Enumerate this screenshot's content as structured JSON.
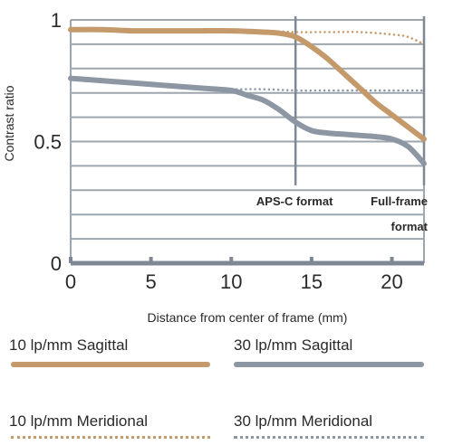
{
  "chart_data": {
    "type": "line",
    "title": "",
    "xlabel": "Distance from center of frame (mm)",
    "ylabel": "Contrast ratio",
    "xlim": [
      0,
      22
    ],
    "ylim": [
      0,
      1
    ],
    "xticks": [
      "0",
      "5",
      "10",
      "15",
      "20"
    ],
    "yticks": [
      "0",
      "0.5",
      "1"
    ],
    "grid": true,
    "annotations": [
      {
        "x": 14,
        "label": "APS-C format"
      },
      {
        "x": 22,
        "label": "Full-frame",
        "label2": "format"
      }
    ],
    "series": [
      {
        "name": "10 lp/mm Sagittal",
        "style": "solid",
        "color": "#c59a6b",
        "x": [
          0,
          2,
          4,
          6,
          8,
          10,
          12,
          13,
          14,
          15,
          16,
          17,
          18,
          19,
          20,
          21,
          22
        ],
        "y": [
          0.96,
          0.96,
          0.955,
          0.955,
          0.955,
          0.955,
          0.95,
          0.945,
          0.93,
          0.89,
          0.84,
          0.78,
          0.72,
          0.66,
          0.61,
          0.56,
          0.51
        ]
      },
      {
        "name": "30 lp/mm Sagittal",
        "style": "solid",
        "color": "#8c97a3",
        "x": [
          0,
          2,
          4,
          6,
          8,
          10,
          11,
          12,
          13,
          14,
          15,
          16,
          17,
          18,
          19,
          20,
          21,
          22
        ],
        "y": [
          0.76,
          0.75,
          0.74,
          0.73,
          0.72,
          0.71,
          0.69,
          0.67,
          0.63,
          0.58,
          0.545,
          0.535,
          0.53,
          0.525,
          0.52,
          0.51,
          0.48,
          0.41
        ]
      },
      {
        "name": "10 lp/mm Meridional",
        "style": "dotted",
        "color": "#c59a6b",
        "x": [
          0,
          4,
          8,
          12,
          14,
          16,
          18,
          20,
          21,
          22
        ],
        "y": [
          0.96,
          0.96,
          0.955,
          0.955,
          0.95,
          0.95,
          0.95,
          0.94,
          0.93,
          0.9
        ]
      },
      {
        "name": "30 lp/mm Meridional",
        "style": "dotted",
        "color": "#8c97a3",
        "x": [
          0,
          4,
          8,
          10,
          12,
          14,
          16,
          18,
          20,
          22
        ],
        "y": [
          0.76,
          0.74,
          0.72,
          0.715,
          0.715,
          0.71,
          0.71,
          0.71,
          0.71,
          0.71
        ]
      }
    ]
  },
  "legend": {
    "s10": "10 lp/mm Sagittal",
    "s30": "30 lp/mm Sagittal",
    "m10": "10 lp/mm Meridional",
    "m30": "30 lp/mm Meridional"
  }
}
